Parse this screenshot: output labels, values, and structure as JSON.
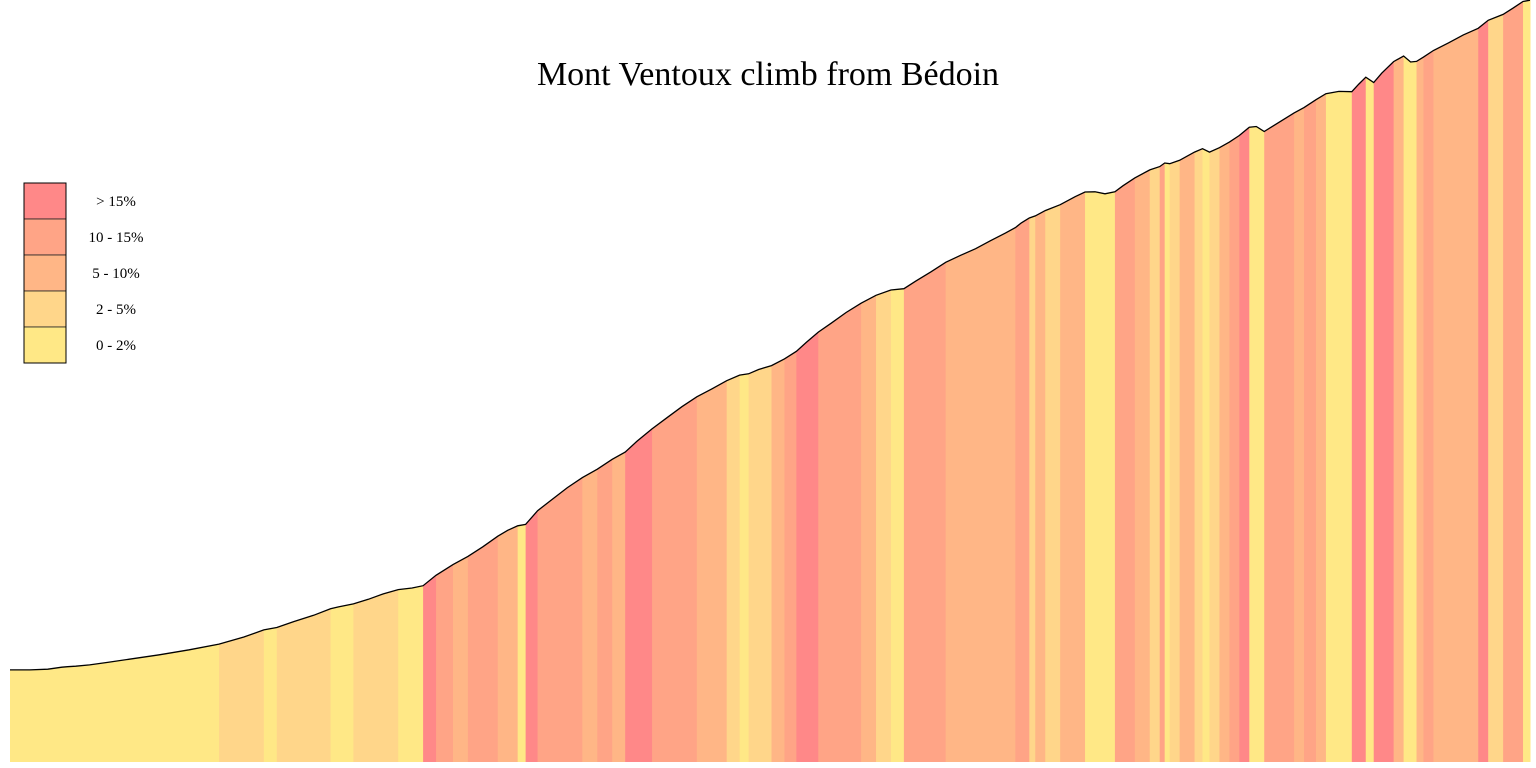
{
  "chart_data": {
    "type": "area",
    "title": "Mont Ventoux climb from Bédoin",
    "xlabel": "",
    "ylabel": "",
    "grid": false,
    "legend_position": "left",
    "legend": [
      {
        "label": "> 15%",
        "color": "#FF8888"
      },
      {
        "label": "10 - 15%",
        "color": "#FFA486"
      },
      {
        "label": "5 - 10%",
        "color": "#FFB686"
      },
      {
        "label": "2 - 5%",
        "color": "#FFD68A"
      },
      {
        "label": "0 - 2%",
        "color": "#FFE886"
      }
    ],
    "x": [
      0,
      20,
      38,
      52,
      58,
      66,
      80,
      98,
      120,
      150,
      180,
      210,
      235,
      255,
      268,
      285,
      305,
      322,
      330,
      345,
      360,
      375,
      390,
      404,
      415,
      428,
      445,
      460,
      475,
      490,
      500,
      510,
      518,
      530,
      545,
      560,
      575,
      590,
      605,
      618,
      630,
      645,
      660,
      675,
      690,
      705,
      720,
      733,
      742,
      752,
      765,
      778,
      790,
      800,
      812,
      825,
      840,
      855,
      870,
      885,
      898,
      910,
      925,
      940,
      955,
      970,
      985,
      1000,
      1010,
      1016,
      1024,
      1030,
      1040,
      1055,
      1070,
      1080,
      1090,
      1100,
      1110,
      1118,
      1130,
      1145,
      1155,
      1160,
      1165,
      1175,
      1190,
      1198,
      1205,
      1215,
      1225,
      1235,
      1245,
      1252,
      1260,
      1275,
      1290,
      1300,
      1312,
      1322,
      1335,
      1348,
      1355,
      1362,
      1370,
      1378,
      1390,
      1400,
      1407,
      1413,
      1420,
      1430,
      1445,
      1460,
      1475,
      1485,
      1500,
      1510,
      1520,
      1527
    ],
    "y": [
      0.5,
      0.5,
      1.3,
      3.6,
      4.2,
      4.7,
      6.3,
      9.1,
      12.8,
      17.8,
      23.6,
      30.1,
      38.2,
      46.4,
      49.1,
      55.9,
      63.1,
      70.5,
      72.7,
      76.1,
      81.4,
      87.6,
      92.5,
      94.4,
      97.0,
      108.9,
      121.2,
      130.6,
      141.6,
      153.7,
      160.5,
      165.6,
      167.2,
      182.9,
      196.2,
      209.4,
      220.8,
      230.4,
      241.8,
      250.1,
      262.6,
      276.6,
      289.5,
      302.0,
      313.4,
      322.4,
      331.9,
      338.3,
      339.8,
      344.7,
      349.2,
      356.8,
      365.5,
      375.7,
      387.5,
      397.7,
      410.0,
      420.6,
      429.7,
      435.7,
      437.2,
      445.9,
      456.5,
      467.5,
      475.5,
      483.1,
      492.2,
      500.9,
      507.3,
      512.6,
      518.3,
      520.6,
      526.7,
      533.5,
      542.6,
      548.0,
      548.3,
      546.0,
      548.3,
      555.1,
      564.2,
      573.3,
      577.1,
      581.3,
      580.5,
      584.3,
      593.8,
      597.6,
      593.8,
      598.8,
      605.2,
      612.8,
      622.3,
      623.1,
      617.4,
      628.0,
      638.6,
      644.7,
      653.8,
      660.6,
      663.3,
      662.9,
      671.6,
      679.6,
      673.5,
      684.1,
      697.4,
      703.8,
      697.0,
      697.7,
      702.6,
      710.2,
      718.9,
      728.0,
      735.6,
      744.7,
      751.5,
      758.7,
      766.3,
      767.8
    ],
    "y_range": [
      -105,
      768
    ]
  }
}
